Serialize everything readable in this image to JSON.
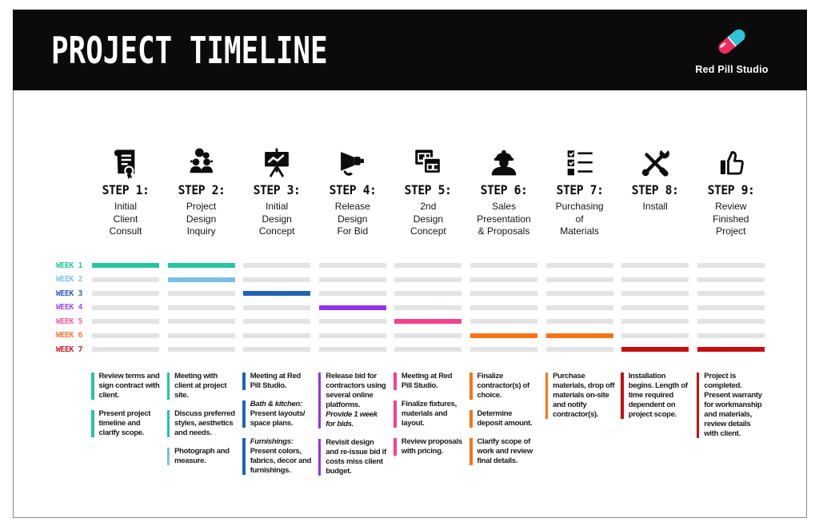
{
  "header": {
    "title": "PROJECT TIMELINE",
    "brand": "Red Pill Studio"
  },
  "colors": {
    "header_bg": "#0b0b0b",
    "ink": "#0c0c0c",
    "track": "#e3e3e3",
    "pill_pink": "#ef2d5e",
    "pill_cyan": "#2fc5d6"
  },
  "weeks": [
    {
      "label": "WEEK 1",
      "label_color": "#2ec5a4",
      "bar_color": "#26c4a1"
    },
    {
      "label": "WEEK 2",
      "label_color": "#85c3ec",
      "bar_color": "#79bfe9"
    },
    {
      "label": "WEEK 3",
      "label_color": "#3a60c0",
      "bar_color": "#1e64b4"
    },
    {
      "label": "WEEK 4",
      "label_color": "#a153f2",
      "bar_color": "#9233e9"
    },
    {
      "label": "WEEK 5",
      "label_color": "#f4619f",
      "bar_color": "#f4418f"
    },
    {
      "label": "WEEK 6",
      "label_color": "#f97b3d",
      "bar_color": "#f97316"
    },
    {
      "label": "WEEK 7",
      "label_color": "#cf2730",
      "bar_color": "#c60d12"
    }
  ],
  "steps": [
    {
      "label": "STEP 1:",
      "name_lines": [
        "Initial",
        "Client",
        "Consult"
      ],
      "icon": "contract-icon",
      "active_weeks": [
        1
      ],
      "notes": [
        {
          "color": "#26c4a1",
          "parts": [
            {
              "text": "Review terms and sign contract with client.",
              "italic": false
            }
          ]
        },
        {
          "color": "#26c4a1",
          "parts": [
            {
              "text": "Present project timeline and clarify scope.",
              "italic": false
            }
          ]
        }
      ]
    },
    {
      "label": "STEP 2:",
      "name_lines": [
        "Project",
        "Design",
        "Inquiry"
      ],
      "icon": "discussion-icon",
      "active_weeks": [
        1,
        2
      ],
      "notes": [
        {
          "color": "#26c4a1",
          "parts": [
            {
              "text": "Meeting with client at project site.",
              "italic": false
            }
          ]
        },
        {
          "color": "#26c4a1",
          "parts": [
            {
              "text": "Discuss preferred styles, aesthetics and needs.",
              "italic": false
            }
          ]
        },
        {
          "color": "#79bfe9",
          "parts": [
            {
              "text": "Photograph and measure.",
              "italic": false
            }
          ]
        }
      ]
    },
    {
      "label": "STEP 3:",
      "name_lines": [
        "Initial",
        "Design",
        "Concept"
      ],
      "icon": "presentation-chart-icon",
      "active_weeks": [
        3
      ],
      "notes": [
        {
          "color": "#1e64b4",
          "parts": [
            {
              "text": "Meeting at Red Pill Studio.",
              "italic": false
            }
          ]
        },
        {
          "color": "#1e64b4",
          "parts": [
            {
              "text": "Bath & kitchen:",
              "italic": true
            },
            {
              "text": " Present layouts/ space plans.",
              "italic": false
            }
          ]
        },
        {
          "color": "#1e64b4",
          "parts": [
            {
              "text": "Furnishings:",
              "italic": true
            },
            {
              "text": " Present colors, fabrics, decor and furnishings.",
              "italic": false
            }
          ]
        }
      ]
    },
    {
      "label": "STEP 4:",
      "name_lines": [
        "Release",
        "Design",
        "For Bid"
      ],
      "icon": "megaphone-icon",
      "active_weeks": [
        4
      ],
      "notes": [
        {
          "color": "#9233e9",
          "parts": [
            {
              "text": "Release bid for contractors using several online platforms. ",
              "italic": false
            },
            {
              "text": "Provide 1 week for bids.",
              "italic": true
            }
          ]
        },
        {
          "color": "#9233e9",
          "parts": [
            {
              "text": "Revisit design and re-issue bid if costs miss client budget.",
              "italic": false
            }
          ]
        }
      ]
    },
    {
      "label": "STEP 5:",
      "name_lines": [
        "2nd",
        "Design",
        "Concept"
      ],
      "icon": "design-windows-icon",
      "active_weeks": [
        5
      ],
      "notes": [
        {
          "color": "#f4418f",
          "parts": [
            {
              "text": "Meeting at Red Pill Studio.",
              "italic": false
            }
          ]
        },
        {
          "color": "#f4418f",
          "parts": [
            {
              "text": "Finalize fixtures, materials and layout.",
              "italic": false
            }
          ]
        },
        {
          "color": "#f4418f",
          "parts": [
            {
              "text": "Review proposals with pricing.",
              "italic": false
            }
          ]
        }
      ]
    },
    {
      "label": "STEP 6:",
      "name_lines": [
        "Sales",
        "Presentation",
        "& Proposals"
      ],
      "icon": "worker-icon",
      "active_weeks": [
        6
      ],
      "notes": [
        {
          "color": "#f97316",
          "parts": [
            {
              "text": "Finalize contractor(s) of choice.",
              "italic": false
            }
          ]
        },
        {
          "color": "#f97316",
          "parts": [
            {
              "text": "Determine deposit amount.",
              "italic": false
            }
          ]
        },
        {
          "color": "#f97316",
          "parts": [
            {
              "text": "Clarify scope of work and review final details.",
              "italic": false
            }
          ]
        }
      ]
    },
    {
      "label": "STEP 7:",
      "name_lines": [
        "Purchasing",
        "of",
        "Materials"
      ],
      "icon": "checklist-icon",
      "active_weeks": [
        6
      ],
      "notes": [
        {
          "color": "#f97316",
          "parts": [
            {
              "text": "Purchase materials, drop off materials on-site and notify contractor(s).",
              "italic": false
            }
          ]
        }
      ]
    },
    {
      "label": "STEP 8:",
      "name_lines": [
        "Install"
      ],
      "icon": "tools-icon",
      "active_weeks": [
        7
      ],
      "notes": [
        {
          "color": "#c60d12",
          "parts": [
            {
              "text": "Installation begins. Length of time required dependent on project scope.",
              "italic": false
            }
          ]
        }
      ]
    },
    {
      "label": "STEP 9:",
      "name_lines": [
        "Review",
        "Finished",
        "Project"
      ],
      "icon": "thumbs-up-icon",
      "active_weeks": [
        7
      ],
      "notes": [
        {
          "color": "#c60d12",
          "parts": [
            {
              "text": "Project is completed. Present warranty for workmanship and materials, review details with client.",
              "italic": false
            }
          ]
        }
      ]
    }
  ]
}
